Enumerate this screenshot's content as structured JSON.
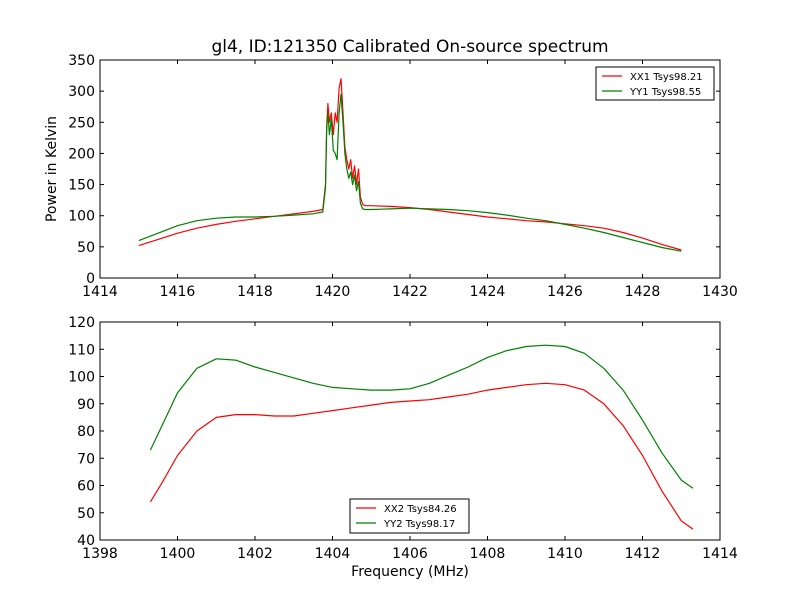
{
  "chart_data": [
    {
      "type": "line",
      "title": "gl4, ID:121350 Calibrated On-source spectrum",
      "xlabel": "",
      "ylabel": "Power in Kelvin",
      "xlim": [
        1414,
        1430
      ],
      "ylim": [
        0,
        350
      ],
      "xticks": [
        1414,
        1416,
        1418,
        1420,
        1422,
        1424,
        1426,
        1428,
        1430
      ],
      "yticks": [
        0,
        50,
        100,
        150,
        200,
        250,
        300,
        350
      ],
      "grid": false,
      "legend_position": "top-right",
      "series": [
        {
          "name": "XX1 Tsys98.21",
          "color": "#ff0000",
          "x": [
            1415.0,
            1415.5,
            1416.0,
            1416.5,
            1417.0,
            1417.5,
            1418.0,
            1418.5,
            1419.0,
            1419.5,
            1419.75,
            1419.82,
            1419.85,
            1419.88,
            1419.92,
            1419.97,
            1420.02,
            1420.07,
            1420.12,
            1420.17,
            1420.22,
            1420.27,
            1420.32,
            1420.37,
            1420.42,
            1420.47,
            1420.52,
            1420.57,
            1420.62,
            1420.67,
            1420.72,
            1420.78,
            1420.85,
            1421.0,
            1421.5,
            1422.0,
            1422.5,
            1423.0,
            1423.5,
            1424.0,
            1424.5,
            1425.0,
            1425.5,
            1426.0,
            1426.5,
            1427.0,
            1427.5,
            1428.0,
            1428.5,
            1429.0
          ],
          "values": [
            52,
            62,
            72,
            80,
            86,
            91,
            95,
            99,
            103,
            107,
            110,
            150,
            245,
            280,
            250,
            265,
            230,
            265,
            250,
            305,
            320,
            265,
            210,
            190,
            175,
            190,
            160,
            180,
            150,
            175,
            130,
            118,
            116,
            116,
            115,
            113,
            110,
            106,
            102,
            98,
            95,
            92,
            90,
            87,
            84,
            80,
            73,
            64,
            54,
            45
          ]
        },
        {
          "name": "YY1 Tsys98.55",
          "color": "#008000",
          "x": [
            1415.0,
            1415.5,
            1416.0,
            1416.5,
            1417.0,
            1417.5,
            1418.0,
            1418.5,
            1419.0,
            1419.5,
            1419.75,
            1419.82,
            1419.85,
            1419.88,
            1419.92,
            1419.97,
            1420.02,
            1420.07,
            1420.12,
            1420.17,
            1420.22,
            1420.27,
            1420.32,
            1420.37,
            1420.42,
            1420.47,
            1420.52,
            1420.57,
            1420.62,
            1420.67,
            1420.72,
            1420.78,
            1420.85,
            1421.0,
            1421.5,
            1422.0,
            1422.5,
            1423.0,
            1423.5,
            1424.0,
            1424.5,
            1425.0,
            1425.5,
            1426.0,
            1426.5,
            1427.0,
            1427.5,
            1428.0,
            1428.5,
            1429.0
          ],
          "values": [
            60,
            72,
            84,
            92,
            96,
            98,
            98,
            99,
            101,
            103,
            106,
            145,
            240,
            265,
            230,
            255,
            205,
            200,
            190,
            265,
            295,
            250,
            200,
            175,
            160,
            170,
            150,
            165,
            140,
            155,
            120,
            111,
            110,
            110,
            111,
            112,
            111,
            110,
            108,
            105,
            101,
            96,
            92,
            86,
            80,
            73,
            65,
            57,
            49,
            43
          ]
        }
      ]
    },
    {
      "type": "line",
      "title": "",
      "xlabel": "Frequency (MHz)",
      "ylabel": "",
      "xlim": [
        1398,
        1414
      ],
      "ylim": [
        40,
        120
      ],
      "xticks": [
        1398,
        1400,
        1402,
        1404,
        1406,
        1408,
        1410,
        1412,
        1414
      ],
      "yticks": [
        40,
        50,
        60,
        70,
        80,
        90,
        100,
        110,
        120
      ],
      "grid": false,
      "legend_position": "bottom-center",
      "series": [
        {
          "name": "XX2 Tsys84.26",
          "color": "#ff0000",
          "x": [
            1399.3,
            1399.6,
            1400.0,
            1400.5,
            1401.0,
            1401.5,
            1402.0,
            1402.5,
            1403.0,
            1403.5,
            1404.0,
            1404.5,
            1405.0,
            1405.5,
            1406.0,
            1406.5,
            1407.0,
            1407.5,
            1408.0,
            1408.5,
            1409.0,
            1409.5,
            1410.0,
            1410.5,
            1411.0,
            1411.5,
            1412.0,
            1412.5,
            1413.0,
            1413.3
          ],
          "values": [
            54,
            61,
            71,
            80,
            85,
            86,
            86,
            85.5,
            85.5,
            86.5,
            87.5,
            88.5,
            89.5,
            90.5,
            91,
            91.5,
            92.5,
            93.5,
            95,
            96,
            97,
            97.5,
            97,
            95,
            90,
            82,
            71,
            58,
            47,
            44
          ]
        },
        {
          "name": "YY2 Tsys98.17",
          "color": "#008000",
          "x": [
            1399.3,
            1399.6,
            1400.0,
            1400.5,
            1401.0,
            1401.5,
            1402.0,
            1402.5,
            1403.0,
            1403.5,
            1404.0,
            1404.5,
            1405.0,
            1405.5,
            1406.0,
            1406.5,
            1407.0,
            1407.5,
            1408.0,
            1408.5,
            1409.0,
            1409.5,
            1410.0,
            1410.5,
            1411.0,
            1411.5,
            1412.0,
            1412.5,
            1413.0,
            1413.3
          ],
          "values": [
            73,
            82,
            94,
            103,
            106.5,
            106,
            103.5,
            101.5,
            99.5,
            97.5,
            96,
            95.5,
            95,
            95,
            95.5,
            97.5,
            100.5,
            103.5,
            107,
            109.5,
            111,
            111.5,
            111,
            108.5,
            103,
            95,
            84,
            72,
            62,
            59
          ]
        }
      ]
    }
  ]
}
